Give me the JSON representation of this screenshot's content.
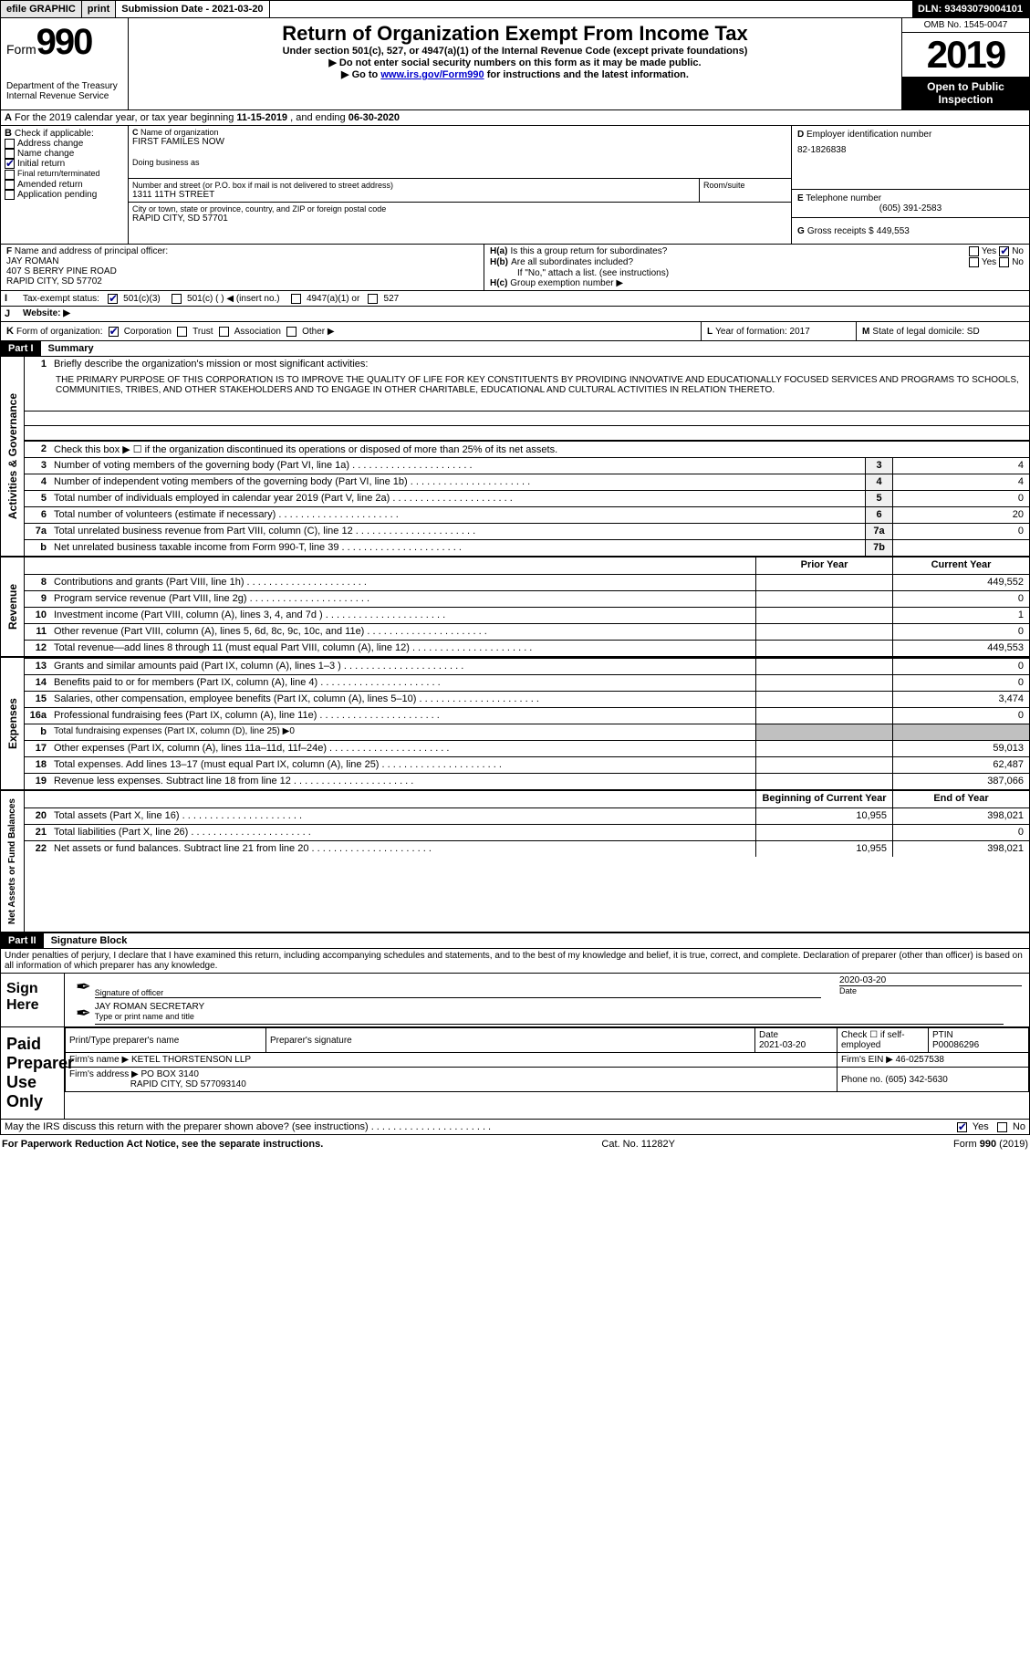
{
  "topbar": {
    "efile": "efile GRAPHIC",
    "print": "print",
    "sub_label": "Submission Date - ",
    "sub_date": "2021-03-20",
    "dln_label": "DLN: ",
    "dln": "93493079004101"
  },
  "header": {
    "form_word": "Form",
    "form_num": "990",
    "dept1": "Department of the Treasury",
    "dept2": "Internal Revenue Service",
    "title": "Return of Organization Exempt From Income Tax",
    "sub1": "Under section 501(c), 527, or 4947(a)(1) of the Internal Revenue Code (except private foundations)",
    "sub2": "Do not enter social security numbers on this form as it may be made public.",
    "sub3a": "Go to ",
    "sub3_link": "www.irs.gov/Form990",
    "sub3b": " for instructions and the latest information.",
    "omb": "OMB No. 1545-0047",
    "year": "2019",
    "otp1": "Open to Public",
    "otp2": "Inspection"
  },
  "period": {
    "text_a": "For the 2019 calendar year, or tax year beginning ",
    "begin": "11-15-2019",
    "text_b": " , and ending ",
    "end": "06-30-2020"
  },
  "boxB": {
    "label": "Check if applicable:",
    "opts": [
      "Address change",
      "Name change",
      "Initial return",
      "Final return/terminated",
      "Amended return",
      "Application pending"
    ],
    "checked_index": 2
  },
  "boxC": {
    "name_label": "Name of organization",
    "name": "FIRST FAMILES NOW",
    "dba_label": "Doing business as",
    "addr_label": "Number and street (or P.O. box if mail is not delivered to street address)",
    "room_label": "Room/suite",
    "addr": "1311 11TH STREET",
    "city_label": "City or town, state or province, country, and ZIP or foreign postal code",
    "city": "RAPID CITY, SD  57701"
  },
  "boxD": {
    "label": "Employer identification number",
    "ein": "82-1826838"
  },
  "boxE": {
    "label": "Telephone number",
    "phone": "(605) 391-2583"
  },
  "boxG": {
    "label": "Gross receipts $",
    "val": "449,553"
  },
  "boxF": {
    "label": "Name and address of principal officer:",
    "name": "JAY ROMAN",
    "addr1": "407 S BERRY PINE ROAD",
    "addr2": "RAPID CITY, SD  57702"
  },
  "boxH": {
    "a_label": "Is this a group return for subordinates?",
    "b_label": "Are all subordinates included?",
    "b_note": "If \"No,\" attach a list. (see instructions)",
    "c_label": "Group exemption number ▶",
    "yes": "Yes",
    "no": "No"
  },
  "boxI": {
    "label": "Tax-exempt status:",
    "opts": [
      "501(c)(3)",
      "501(c) (  ) ◀ (insert no.)",
      "4947(a)(1) or",
      "527"
    ]
  },
  "boxJ": {
    "label": "Website: ▶"
  },
  "boxK": {
    "label": "Form of organization:",
    "opts": [
      "Corporation",
      "Trust",
      "Association",
      "Other ▶"
    ]
  },
  "boxL": {
    "label": "Year of formation: ",
    "val": "2017"
  },
  "boxM": {
    "label": "State of legal domicile: ",
    "val": "SD"
  },
  "part1": {
    "num": "Part I",
    "title": "Summary"
  },
  "mission": {
    "label": "Briefly describe the organization's mission or most significant activities:",
    "text": "THE PRIMARY PURPOSE OF THIS CORPORATION IS TO IMPROVE THE QUALITY OF LIFE FOR KEY CONSTITUENTS BY PROVIDING INNOVATIVE AND EDUCATIONALLY FOCUSED SERVICES AND PROGRAMS TO SCHOOLS, COMMUNITIES, TRIBES, AND OTHER STAKEHOLDERS AND TO ENGAGE IN OTHER CHARITABLE, EDUCATIONAL AND CULTURAL ACTIVITIES IN RELATION THERETO."
  },
  "ag_lines": [
    {
      "n": "2",
      "t": "Check this box ▶ ☐  if the organization discontinued its operations or disposed of more than 25% of its net assets."
    },
    {
      "n": "3",
      "t": "Number of voting members of the governing body (Part VI, line 1a)",
      "c": "3",
      "v": "4"
    },
    {
      "n": "4",
      "t": "Number of independent voting members of the governing body (Part VI, line 1b)",
      "c": "4",
      "v": "4"
    },
    {
      "n": "5",
      "t": "Total number of individuals employed in calendar year 2019 (Part V, line 2a)",
      "c": "5",
      "v": "0"
    },
    {
      "n": "6",
      "t": "Total number of volunteers (estimate if necessary)",
      "c": "6",
      "v": "20"
    },
    {
      "n": "7a",
      "t": "Total unrelated business revenue from Part VIII, column (C), line 12",
      "c": "7a",
      "v": "0"
    },
    {
      "n": "b",
      "t": "Net unrelated business taxable income from Form 990-T, line 39",
      "c": "7b",
      "v": ""
    }
  ],
  "col_hdr": {
    "prior": "Prior Year",
    "current": "Current Year"
  },
  "rev_lines": [
    {
      "n": "8",
      "t": "Contributions and grants (Part VIII, line 1h)",
      "p": "",
      "c": "449,552"
    },
    {
      "n": "9",
      "t": "Program service revenue (Part VIII, line 2g)",
      "p": "",
      "c": "0"
    },
    {
      "n": "10",
      "t": "Investment income (Part VIII, column (A), lines 3, 4, and 7d )",
      "p": "",
      "c": "1"
    },
    {
      "n": "11",
      "t": "Other revenue (Part VIII, column (A), lines 5, 6d, 8c, 9c, 10c, and 11e)",
      "p": "",
      "c": "0"
    },
    {
      "n": "12",
      "t": "Total revenue—add lines 8 through 11 (must equal Part VIII, column (A), line 12)",
      "p": "",
      "c": "449,553"
    }
  ],
  "exp_lines": [
    {
      "n": "13",
      "t": "Grants and similar amounts paid (Part IX, column (A), lines 1–3 )",
      "p": "",
      "c": "0"
    },
    {
      "n": "14",
      "t": "Benefits paid to or for members (Part IX, column (A), line 4)",
      "p": "",
      "c": "0"
    },
    {
      "n": "15",
      "t": "Salaries, other compensation, employee benefits (Part IX, column (A), lines 5–10)",
      "p": "",
      "c": "3,474"
    },
    {
      "n": "16a",
      "t": "Professional fundraising fees (Part IX, column (A), line 11e)",
      "p": "",
      "c": "0"
    },
    {
      "n": "b",
      "t": "Total fundraising expenses (Part IX, column (D), line 25) ▶0",
      "grey": true
    },
    {
      "n": "17",
      "t": "Other expenses (Part IX, column (A), lines 11a–11d, 11f–24e)",
      "p": "",
      "c": "59,013"
    },
    {
      "n": "18",
      "t": "Total expenses. Add lines 13–17 (must equal Part IX, column (A), line 25)",
      "p": "",
      "c": "62,487"
    },
    {
      "n": "19",
      "t": "Revenue less expenses. Subtract line 18 from line 12",
      "p": "",
      "c": "387,066"
    }
  ],
  "na_hdr": {
    "begin": "Beginning of Current Year",
    "end": "End of Year"
  },
  "na_lines": [
    {
      "n": "20",
      "t": "Total assets (Part X, line 16)",
      "p": "10,955",
      "c": "398,021"
    },
    {
      "n": "21",
      "t": "Total liabilities (Part X, line 26)",
      "p": "",
      "c": "0"
    },
    {
      "n": "22",
      "t": "Net assets or fund balances. Subtract line 21 from line 20",
      "p": "10,955",
      "c": "398,021"
    }
  ],
  "vtabs": {
    "ag": "Activities & Governance",
    "rev": "Revenue",
    "exp": "Expenses",
    "na": "Net Assets or Fund Balances"
  },
  "part2": {
    "num": "Part II",
    "title": "Signature Block"
  },
  "sig": {
    "jurat": "Under penalties of perjury, I declare that I have examined this return, including accompanying schedules and statements, and to the best of my knowledge and belief, it is true, correct, and complete. Declaration of preparer (other than officer) is based on all information of which preparer has any knowledge.",
    "here": "Sign Here",
    "sig_label": "Signature of officer",
    "date_label": "Date",
    "date": "2020-03-20",
    "name": "JAY ROMAN  SECRETARY",
    "name_label": "Type or print name and title"
  },
  "prep": {
    "title": "Paid Preparer Use Only",
    "h1": "Print/Type preparer's name",
    "h2": "Preparer's signature",
    "h3_l": "Date",
    "h3": "2021-03-20",
    "h4a": "Check ☐ if self-employed",
    "h5_l": "PTIN",
    "h5": "P00086296",
    "firm_l": "Firm's name    ▶",
    "firm": "KETEL THORSTENSON LLP",
    "ein_l": "Firm's EIN ▶",
    "ein": "46-0257538",
    "addr_l": "Firm's address ▶",
    "addr1": "PO BOX 3140",
    "addr2": "RAPID CITY, SD  577093140",
    "phone_l": "Phone no.",
    "phone": "(605) 342-5630"
  },
  "discuss": {
    "text": "May the IRS discuss this return with the preparer shown above? (see instructions)",
    "yes": "Yes",
    "no": "No"
  },
  "footer": {
    "pra": "For Paperwork Reduction Act Notice, see the separate instructions.",
    "cat": "Cat. No. 11282Y",
    "form": "Form 990 (2019)"
  },
  "letters": {
    "A": "A",
    "B": "B",
    "C": "C",
    "D": "D",
    "E": "E",
    "F": "F",
    "G": "G",
    "Ha": "H(a)",
    "Hb": "H(b)",
    "Hc": "H(c)",
    "I": "I",
    "J": "J",
    "K": "K",
    "L": "L",
    "M": "M"
  }
}
